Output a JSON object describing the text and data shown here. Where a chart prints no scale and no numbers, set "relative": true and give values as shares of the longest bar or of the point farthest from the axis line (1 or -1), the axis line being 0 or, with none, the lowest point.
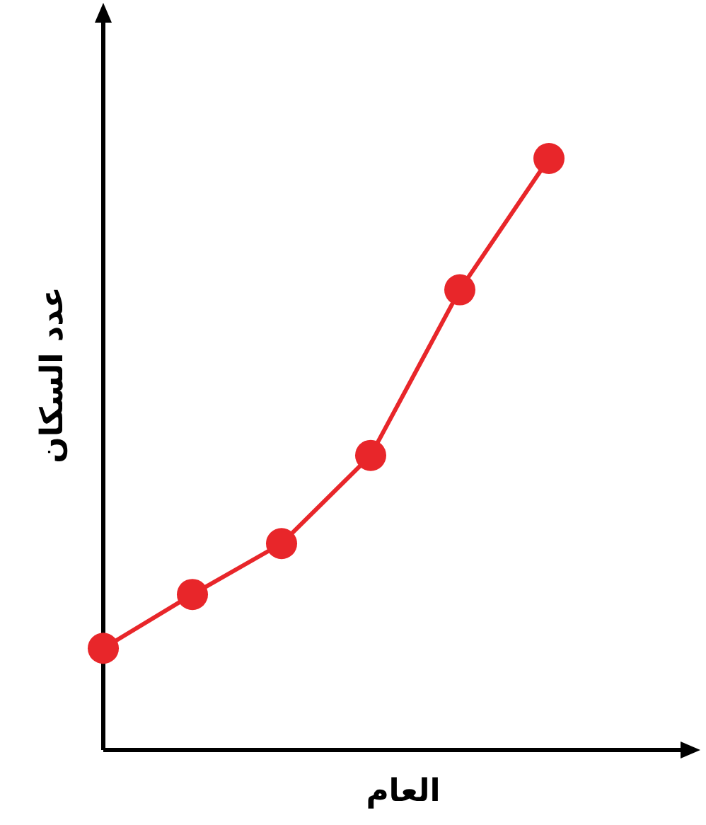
{
  "chart_data": {
    "type": "line",
    "relative": true,
    "xlabel": "العام",
    "ylabel": "عدد السكان",
    "categories": [
      null,
      null,
      null,
      null,
      null,
      null
    ],
    "series": [
      {
        "color": "#e8262a",
        "values": [
          0.172,
          0.263,
          0.349,
          0.498,
          0.778,
          1.0
        ]
      }
    ],
    "marker": "circle",
    "line_style": "solid"
  }
}
